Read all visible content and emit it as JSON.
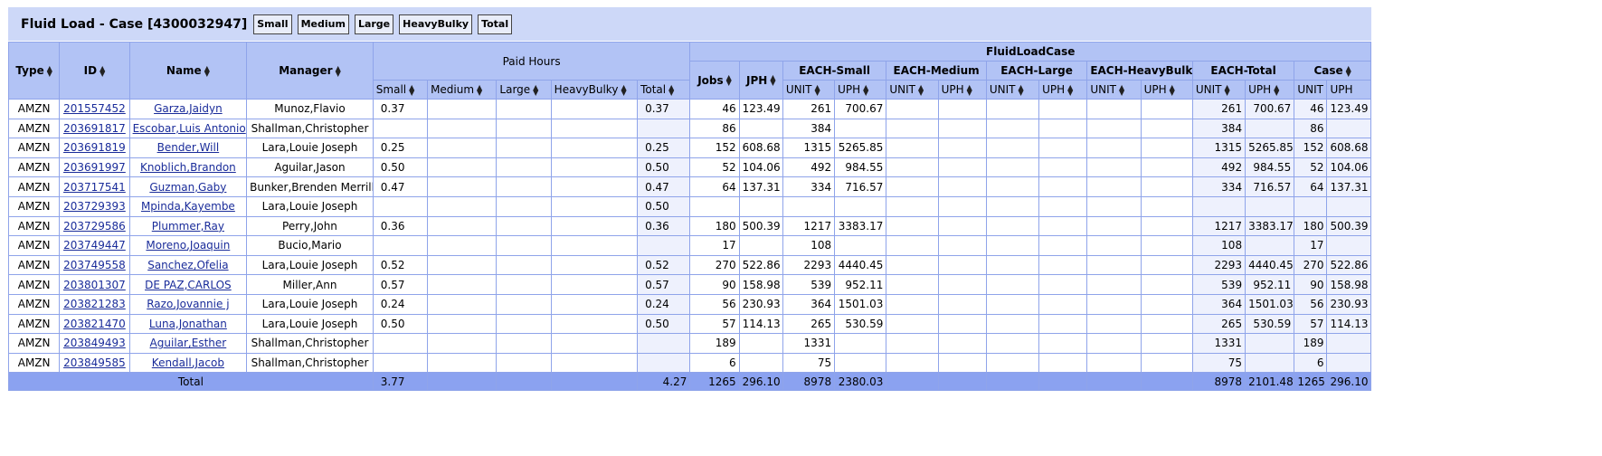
{
  "title": "Fluid Load - Case [4300032947]",
  "filters": [
    "Small",
    "Medium",
    "Large",
    "HeavyBulky",
    "Total"
  ],
  "headers": {
    "type": "Type",
    "id": "ID",
    "name": "Name",
    "manager": "Manager",
    "paid_hours": "Paid Hours",
    "fluid": "FluidLoadCase",
    "small": "Small",
    "medium": "Medium",
    "large": "Large",
    "heavybulky": "HeavyBulky",
    "total": "Total",
    "jobs": "Jobs",
    "jph": "JPH",
    "each_small": "EACH-Small",
    "each_medium": "EACH-Medium",
    "each_large": "EACH-Large",
    "each_heavybulky": "EACH-HeavyBulky",
    "each_total": "EACH-Total",
    "case": "Case",
    "unit": "UNIT",
    "uph": "UPH"
  },
  "rows": [
    {
      "type": "AMZN",
      "id": "201557452",
      "name": "Garza,Jaidyn",
      "manager": "Munoz,Flavio",
      "ph_small": "0.37",
      "ph_total": "0.37",
      "jobs": "46",
      "jph": "123.49",
      "es_unit": "261",
      "es_uph": "700.67",
      "et_unit": "261",
      "et_uph": "700.67",
      "c_unit": "46",
      "c_uph": "123.49"
    },
    {
      "type": "AMZN",
      "id": "203691817",
      "name": "Escobar,Luis Antonio",
      "manager": "Shallman,Christopher",
      "ph_small": "",
      "ph_total": "",
      "jobs": "86",
      "jph": "",
      "es_unit": "384",
      "es_uph": "",
      "et_unit": "384",
      "et_uph": "",
      "c_unit": "86",
      "c_uph": ""
    },
    {
      "type": "AMZN",
      "id": "203691819",
      "name": "Bender,Will",
      "manager": "Lara,Louie Joseph",
      "ph_small": "0.25",
      "ph_total": "0.25",
      "jobs": "152",
      "jph": "608.68",
      "es_unit": "1315",
      "es_uph": "5265.85",
      "et_unit": "1315",
      "et_uph": "5265.85",
      "c_unit": "152",
      "c_uph": "608.68"
    },
    {
      "type": "AMZN",
      "id": "203691997",
      "name": "Knoblich,Brandon",
      "manager": "Aguilar,Jason",
      "ph_small": "0.50",
      "ph_total": "0.50",
      "jobs": "52",
      "jph": "104.06",
      "es_unit": "492",
      "es_uph": "984.55",
      "et_unit": "492",
      "et_uph": "984.55",
      "c_unit": "52",
      "c_uph": "104.06"
    },
    {
      "type": "AMZN",
      "id": "203717541",
      "name": "Guzman,Gaby",
      "manager": "Bunker,Brenden Merrill",
      "ph_small": "0.47",
      "ph_total": "0.47",
      "jobs": "64",
      "jph": "137.31",
      "es_unit": "334",
      "es_uph": "716.57",
      "et_unit": "334",
      "et_uph": "716.57",
      "c_unit": "64",
      "c_uph": "137.31"
    },
    {
      "type": "AMZN",
      "id": "203729393",
      "name": "Mpinda,Kayembe",
      "manager": "Lara,Louie Joseph",
      "ph_small": "",
      "ph_total": "0.50",
      "jobs": "",
      "jph": "",
      "es_unit": "",
      "es_uph": "",
      "et_unit": "",
      "et_uph": "",
      "c_unit": "",
      "c_uph": ""
    },
    {
      "type": "AMZN",
      "id": "203729586",
      "name": "Plummer,Ray",
      "manager": "Perry,John",
      "ph_small": "0.36",
      "ph_total": "0.36",
      "jobs": "180",
      "jph": "500.39",
      "es_unit": "1217",
      "es_uph": "3383.17",
      "et_unit": "1217",
      "et_uph": "3383.17",
      "c_unit": "180",
      "c_uph": "500.39"
    },
    {
      "type": "AMZN",
      "id": "203749447",
      "name": "Moreno,Joaquin",
      "manager": "Bucio,Mario",
      "ph_small": "",
      "ph_total": "",
      "jobs": "17",
      "jph": "",
      "es_unit": "108",
      "es_uph": "",
      "et_unit": "108",
      "et_uph": "",
      "c_unit": "17",
      "c_uph": ""
    },
    {
      "type": "AMZN",
      "id": "203749558",
      "name": "Sanchez,Ofelia",
      "manager": "Lara,Louie Joseph",
      "ph_small": "0.52",
      "ph_total": "0.52",
      "jobs": "270",
      "jph": "522.86",
      "es_unit": "2293",
      "es_uph": "4440.45",
      "et_unit": "2293",
      "et_uph": "4440.45",
      "c_unit": "270",
      "c_uph": "522.86"
    },
    {
      "type": "AMZN",
      "id": "203801307",
      "name": "DE PAZ,CARLOS",
      "manager": "Miller,Ann",
      "ph_small": "0.57",
      "ph_total": "0.57",
      "jobs": "90",
      "jph": "158.98",
      "es_unit": "539",
      "es_uph": "952.11",
      "et_unit": "539",
      "et_uph": "952.11",
      "c_unit": "90",
      "c_uph": "158.98"
    },
    {
      "type": "AMZN",
      "id": "203821283",
      "name": "Razo,Jovannie j",
      "manager": "Lara,Louie Joseph",
      "ph_small": "0.24",
      "ph_total": "0.24",
      "jobs": "56",
      "jph": "230.93",
      "es_unit": "364",
      "es_uph": "1501.03",
      "et_unit": "364",
      "et_uph": "1501.03",
      "c_unit": "56",
      "c_uph": "230.93"
    },
    {
      "type": "AMZN",
      "id": "203821470",
      "name": "Luna,Jonathan",
      "manager": "Lara,Louie Joseph",
      "ph_small": "0.50",
      "ph_total": "0.50",
      "jobs": "57",
      "jph": "114.13",
      "es_unit": "265",
      "es_uph": "530.59",
      "et_unit": "265",
      "et_uph": "530.59",
      "c_unit": "57",
      "c_uph": "114.13"
    },
    {
      "type": "AMZN",
      "id": "203849493",
      "name": "Aguilar,Esther",
      "manager": "Shallman,Christopher",
      "ph_small": "",
      "ph_total": "",
      "jobs": "189",
      "jph": "",
      "es_unit": "1331",
      "es_uph": "",
      "et_unit": "1331",
      "et_uph": "",
      "c_unit": "189",
      "c_uph": ""
    },
    {
      "type": "AMZN",
      "id": "203849585",
      "name": "Kendall,Jacob",
      "manager": "Shallman,Christopher",
      "ph_small": "",
      "ph_total": "",
      "jobs": "6",
      "jph": "",
      "es_unit": "75",
      "es_uph": "",
      "et_unit": "75",
      "et_uph": "",
      "c_unit": "6",
      "c_uph": ""
    }
  ],
  "totals": {
    "label": "Total",
    "ph_small": "3.77",
    "ph_total": "4.27",
    "jobs": "1265",
    "jph": "296.10",
    "es_unit": "8978",
    "es_uph": "2380.03",
    "et_unit": "8978",
    "et_uph": "2101.48",
    "c_unit": "1265",
    "c_uph": "296.10"
  }
}
